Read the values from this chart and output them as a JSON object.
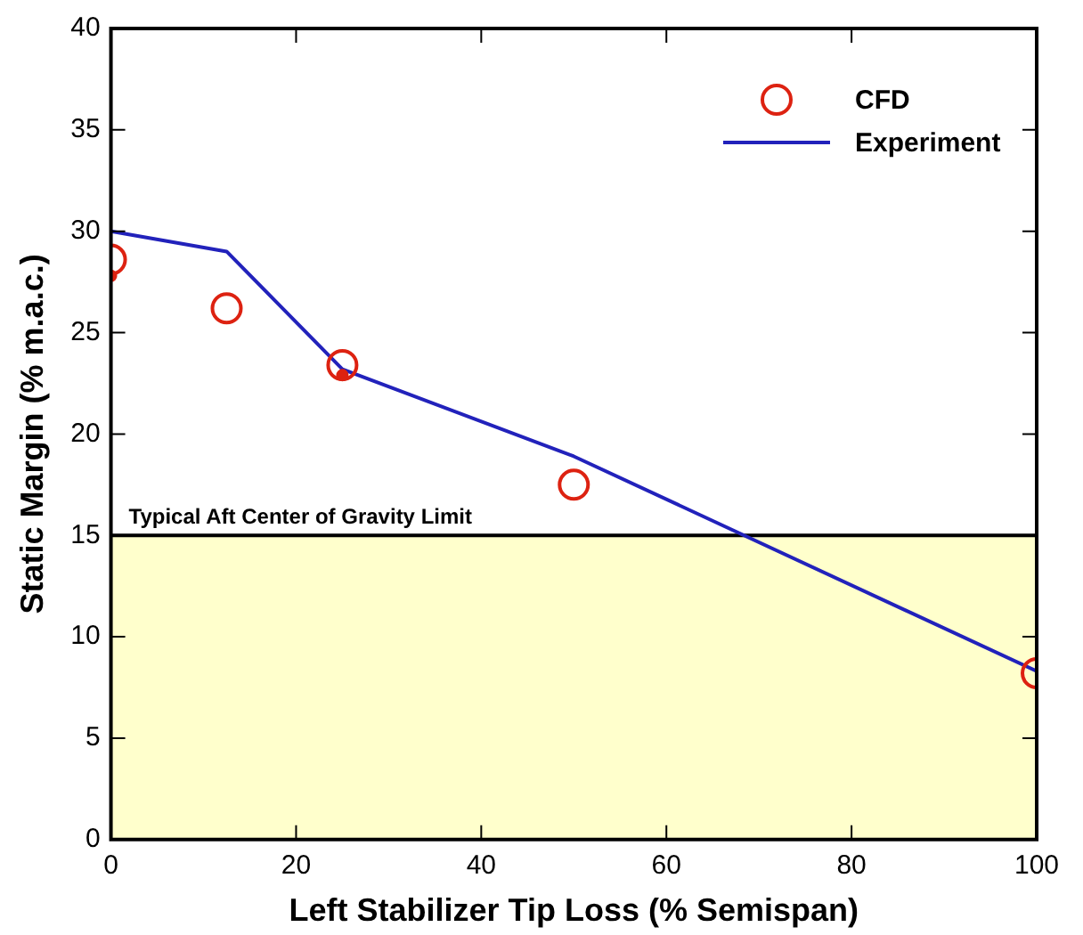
{
  "chart_data": {
    "type": "scatter",
    "xlabel": "Left Stabilizer Tip Loss (% Semispan)",
    "ylabel": "Static Margin (% m.a.c.)",
    "xlim": [
      0,
      100
    ],
    "xticks": [
      0,
      20,
      40,
      60,
      80,
      100
    ],
    "ylim": [
      0,
      40
    ],
    "yticks": [
      0,
      5,
      10,
      15,
      20,
      25,
      30,
      35,
      40
    ],
    "grid": false,
    "legend": "top right",
    "series": [
      {
        "name": "CFD",
        "marker": "circle",
        "color": "#dd2211",
        "x": [
          0,
          12.5,
          25,
          50,
          100
        ],
        "values": [
          28.6,
          26.2,
          23.4,
          17.5,
          8.2
        ]
      },
      {
        "marker": "circle",
        "color": "#dd2211",
        "x": [
          0,
          25
        ],
        "values": [
          27.8,
          22.9
        ]
      },
      {
        "name": "Experiment",
        "type": "line",
        "marker": "none",
        "color": "#2222bb",
        "x": [
          0,
          12.5,
          25,
          50,
          100
        ],
        "values": [
          30,
          29,
          23.2,
          18.9,
          8.3
        ]
      }
    ],
    "bands": [
      {
        "axis": "y",
        "from": 0,
        "to": 15,
        "color": "#ffffcc"
      }
    ],
    "ref_lines": [
      {
        "axis": "y",
        "value": 15,
        "label": "Typical Aft Center of Gravity Limit",
        "color": "#000000"
      }
    ]
  }
}
